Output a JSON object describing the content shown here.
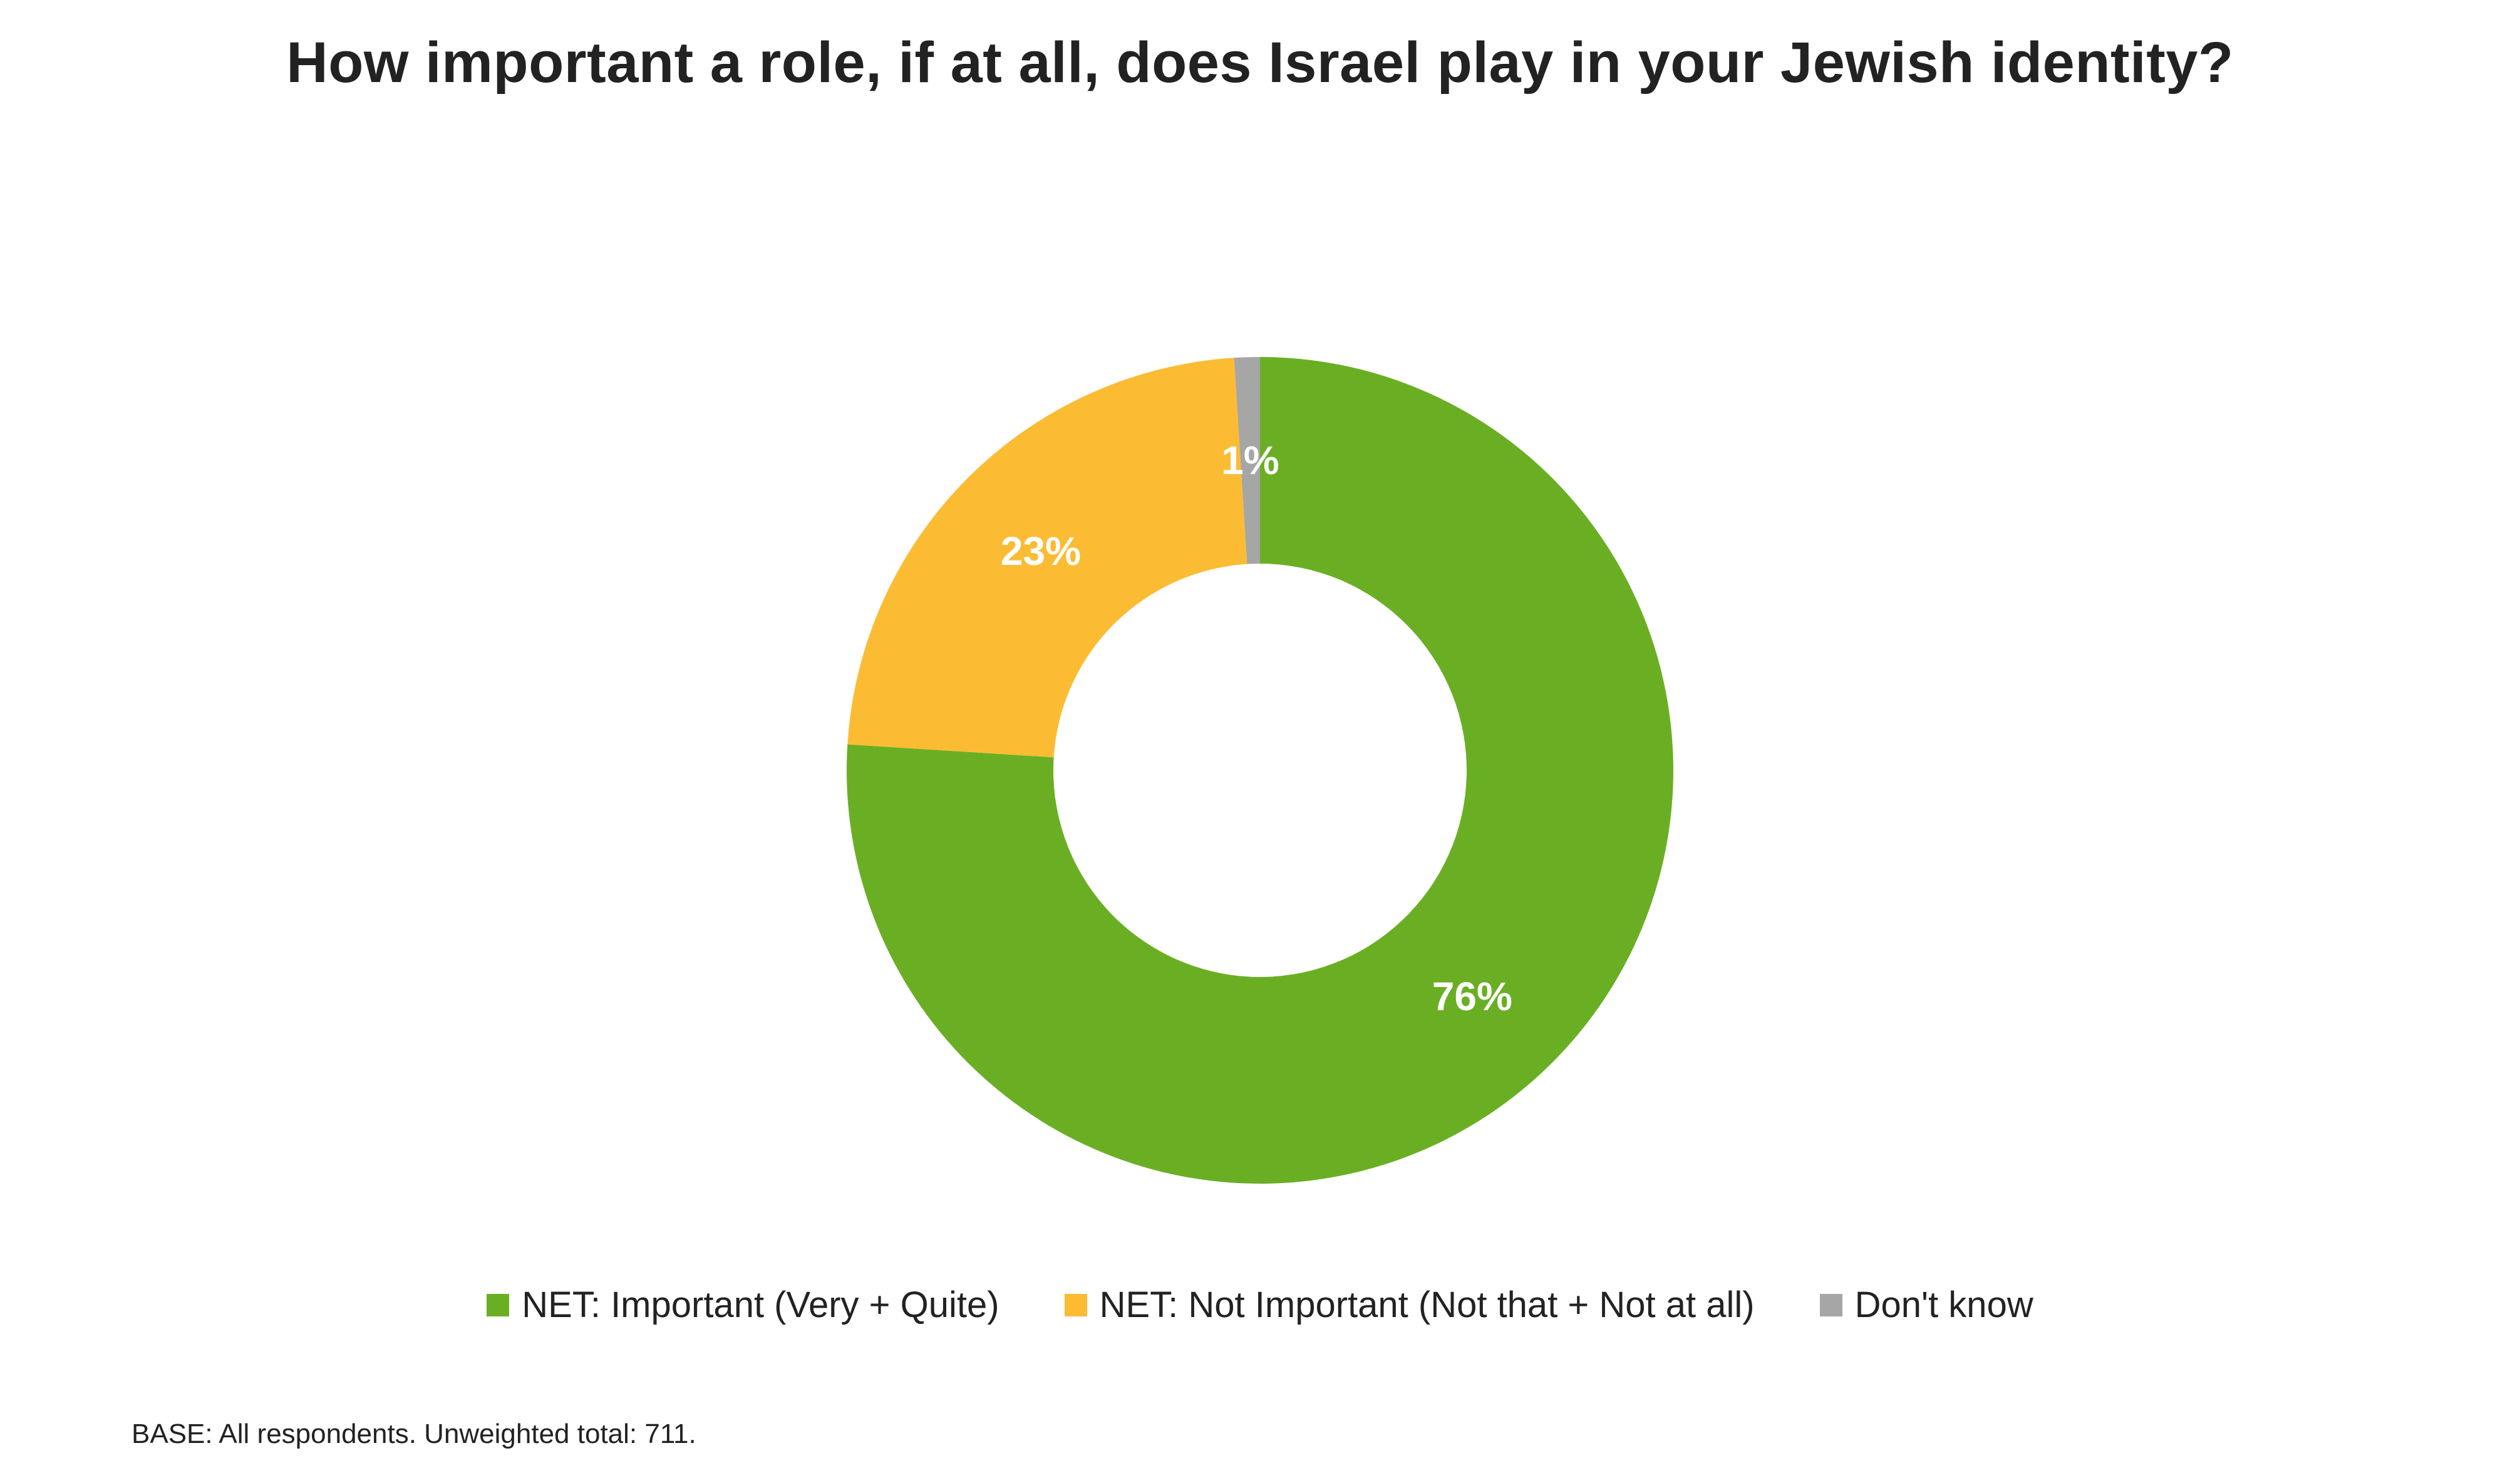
{
  "chart_data": {
    "type": "pie",
    "variant": "donut",
    "title": "How important a role, if at all, does Israel play in your Jewish identity?",
    "slices": [
      {
        "label": "NET: Important (Very + Quite)",
        "value": 76,
        "display": "76%",
        "color": "#6aaf23"
      },
      {
        "label": "NET: Not Important (Not that + Not at all)",
        "value": 23,
        "display": "23%",
        "color": "#fbbc34"
      },
      {
        "label": "Don't know",
        "value": 1,
        "display": "1%",
        "color": "#a6a6a6"
      }
    ],
    "legend_position": "bottom",
    "footnote": "BASE: All respondents. Unweighted total: 711."
  }
}
